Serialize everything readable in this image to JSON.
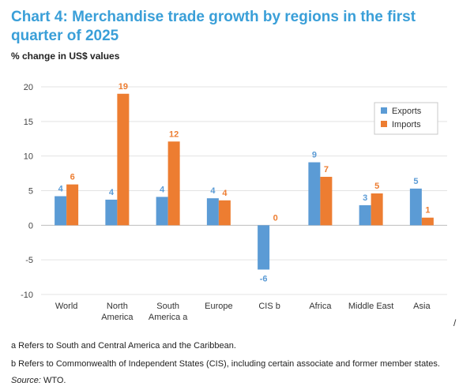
{
  "title": "Chart 4: Merchandise trade growth by regions in the first quarter of 2025",
  "subtitle": "% change in US$ values",
  "footnotes": {
    "a": "a  Refers to South and Central America and the Caribbean.",
    "b": "b Refers to Commonwealth of Independent States (CIS), including certain associate and former member states.",
    "source_label": "Source:",
    "source_value": " WTO."
  },
  "stray_mark": "/",
  "colors": {
    "exports": "#5b9bd5",
    "imports": "#ed7d31"
  },
  "chart_data": {
    "type": "bar",
    "categories": [
      [
        "World"
      ],
      [
        "North",
        "America"
      ],
      [
        "South",
        "America  a"
      ],
      [
        "Europe"
      ],
      [
        "CIS  b"
      ],
      [
        "Africa"
      ],
      [
        "Middle East"
      ],
      [
        "Asia"
      ]
    ],
    "series": [
      {
        "name": "Exports",
        "values": [
          4.2,
          3.7,
          4.1,
          3.9,
          -6.4,
          9.1,
          2.9,
          5.3
        ],
        "labels": [
          "4",
          "4",
          "4",
          "4",
          "-6",
          "9",
          "3",
          "5"
        ]
      },
      {
        "name": "Imports",
        "values": [
          5.9,
          19.0,
          12.1,
          3.6,
          0,
          7.0,
          4.6,
          1.1
        ],
        "labels": [
          "6",
          "19",
          "12",
          "4",
          "0",
          "7",
          "5",
          "1"
        ]
      }
    ],
    "ylim": [
      -10,
      20
    ],
    "yticks": [
      -10,
      -5,
      0,
      5,
      10,
      15,
      20
    ],
    "legend_position": "top-right"
  }
}
